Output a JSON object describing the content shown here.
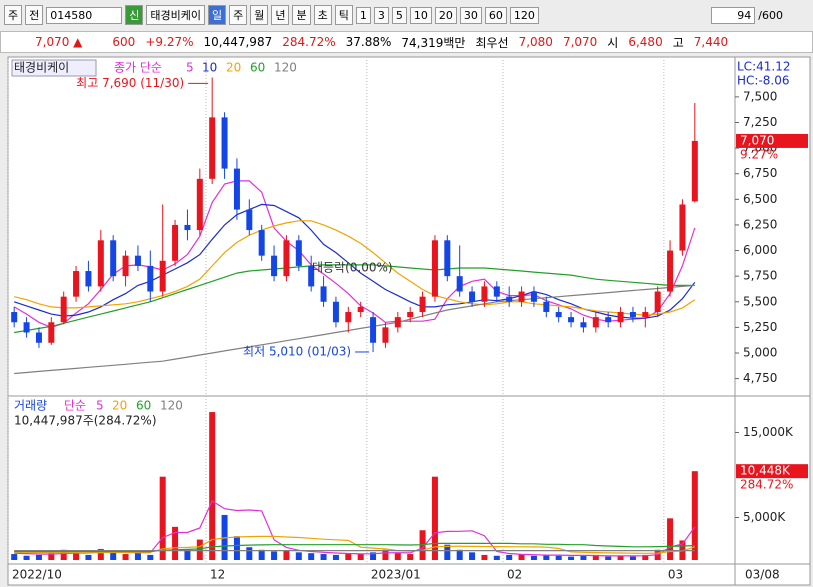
{
  "toolbar": {
    "mode": "주",
    "type": "전",
    "code": "014580",
    "badge": "신",
    "name": "태경비케이",
    "periods": [
      "일",
      "주",
      "월",
      "년",
      "분",
      "초",
      "틱"
    ],
    "intervals": [
      "1",
      "3",
      "5",
      "10",
      "20",
      "30",
      "60",
      "120"
    ],
    "count": "94",
    "max": "/600"
  },
  "quote": {
    "price": "7,070 ▲",
    "change": "600",
    "rate": "+9.27%",
    "volume": "10,447,987",
    "vol_ratio": "284.72%",
    "turnover": "37.88%",
    "amount": "74,319백만",
    "best_label": "최우선",
    "ask": "7,080",
    "bid": "7,070",
    "open_label": "시",
    "open": "6,480",
    "high_label": "고",
    "high": "7,440"
  },
  "chart_data": [
    {
      "type": "candlestick",
      "name": "태경비케이",
      "ma_label": "종가 단순",
      "lc": "LC:41.12",
      "hc": "HC:-8.06",
      "categories": [
        "2022/10",
        null,
        null,
        null,
        null,
        null,
        null,
        null,
        null,
        null,
        null,
        null,
        null,
        null,
        null,
        null,
        "12",
        null,
        null,
        null,
        null,
        null,
        null,
        null,
        null,
        null,
        null,
        null,
        null,
        "2023/01",
        null,
        null,
        null,
        null,
        null,
        null,
        null,
        null,
        null,
        null,
        "02",
        null,
        null,
        null,
        null,
        null,
        null,
        null,
        null,
        null,
        null,
        null,
        null,
        "03",
        null,
        null
      ],
      "last_date": "03/08",
      "open": [
        5400,
        5300,
        5200,
        5100,
        5300,
        5550,
        5800,
        5650,
        6100,
        5750,
        5950,
        5850,
        5600,
        5900,
        6250,
        6200,
        6700,
        7300,
        6800,
        6400,
        6200,
        5950,
        5750,
        6100,
        5850,
        5650,
        5500,
        5300,
        5400,
        5350,
        5100,
        5250,
        5350,
        5400,
        5550,
        6100,
        5750,
        5600,
        5500,
        5650,
        5550,
        5500,
        5600,
        5500,
        5400,
        5350,
        5300,
        5250,
        5350,
        5300,
        5400,
        5350,
        5400,
        5600,
        6000,
        6480
      ],
      "high": [
        5450,
        5350,
        5250,
        5350,
        5600,
        5850,
        5900,
        6200,
        6150,
        6000,
        6050,
        6000,
        6450,
        6300,
        6400,
        6800,
        7690,
        7350,
        6900,
        6500,
        6250,
        6050,
        6150,
        6150,
        5950,
        5750,
        5550,
        5450,
        5500,
        5400,
        5300,
        5400,
        5450,
        5600,
        6150,
        6150,
        6050,
        5650,
        5700,
        5700,
        5650,
        5650,
        5650,
        5550,
        5450,
        5400,
        5350,
        5400,
        5400,
        5450,
        5450,
        5450,
        5650,
        6100,
        6500,
        7440
      ],
      "low": [
        5250,
        5150,
        5050,
        5080,
        5280,
        5500,
        5600,
        5600,
        5700,
        5650,
        5800,
        5500,
        5550,
        5850,
        6100,
        6150,
        6650,
        6700,
        6300,
        6150,
        5900,
        5700,
        5700,
        5800,
        5600,
        5450,
        5250,
        5200,
        5350,
        5010,
        5050,
        5200,
        5300,
        5350,
        5500,
        5700,
        5550,
        5450,
        5450,
        5500,
        5450,
        5450,
        5450,
        5350,
        5300,
        5250,
        5200,
        5200,
        5250,
        5250,
        5300,
        5250,
        5350,
        5550,
        5950,
        6470
      ],
      "close": [
        5300,
        5200,
        5100,
        5300,
        5550,
        5800,
        5650,
        6100,
        5750,
        5950,
        5850,
        5600,
        5900,
        6250,
        6200,
        6700,
        7300,
        6800,
        6400,
        6200,
        5950,
        5750,
        6100,
        5850,
        5650,
        5500,
        5300,
        5400,
        5450,
        5100,
        5250,
        5350,
        5400,
        5550,
        6100,
        5750,
        5600,
        5500,
        5650,
        5550,
        5500,
        5600,
        5500,
        5400,
        5350,
        5300,
        5250,
        5350,
        5300,
        5400,
        5350,
        5400,
        5600,
        6000,
        6450,
        7070
      ],
      "up_color": "#e8141e",
      "down_color": "#1446e6",
      "series": [
        {
          "name": "5",
          "color": "#e030d8",
          "values": [
            5450,
            5380,
            5300,
            5250,
            5290,
            5390,
            5480,
            5620,
            5770,
            5850,
            5860,
            5840,
            5810,
            5870,
            5960,
            6140,
            6470,
            6650,
            6680,
            6680,
            6570,
            6220,
            6090,
            6000,
            5860,
            5770,
            5680,
            5580,
            5460,
            5390,
            5300,
            5310,
            5310,
            5310,
            5330,
            5530,
            5650,
            5700,
            5720,
            5600,
            5560,
            5560,
            5570,
            5510,
            5470,
            5430,
            5370,
            5330,
            5310,
            5320,
            5330,
            5340,
            5410,
            5580,
            5850,
            6220
          ]
        },
        {
          "name": "10",
          "color": "#1c2ccc",
          "values": [
            5500,
            5460,
            5420,
            5380,
            5360,
            5370,
            5400,
            5450,
            5520,
            5580,
            5660,
            5700,
            5760,
            5820,
            5880,
            5960,
            6110,
            6250,
            6350,
            6400,
            6450,
            6440,
            6380,
            6320,
            6200,
            6060,
            5980,
            5880,
            5780,
            5700,
            5620,
            5560,
            5500,
            5450,
            5450,
            5470,
            5480,
            5500,
            5520,
            5510,
            5530,
            5560,
            5600,
            5570,
            5520,
            5480,
            5430,
            5400,
            5370,
            5350,
            5340,
            5340,
            5360,
            5420,
            5530,
            5690
          ]
        },
        {
          "name": "20",
          "color": "#f0a400",
          "values": [
            5550,
            5520,
            5480,
            5450,
            5440,
            5440,
            5450,
            5460,
            5470,
            5480,
            5500,
            5530,
            5560,
            5600,
            5650,
            5720,
            5850,
            5980,
            6080,
            6150,
            6200,
            6240,
            6270,
            6290,
            6290,
            6250,
            6200,
            6140,
            6070,
            5980,
            5880,
            5780,
            5700,
            5620,
            5560,
            5530,
            5500,
            5480,
            5470,
            5480,
            5500,
            5500,
            5480,
            5470,
            5460,
            5450,
            5430,
            5410,
            5400,
            5390,
            5380,
            5370,
            5380,
            5400,
            5440,
            5520
          ]
        },
        {
          "name": "60",
          "color": "#22a028",
          "values": [
            5200,
            5220,
            5240,
            5260,
            5290,
            5320,
            5350,
            5380,
            5410,
            5440,
            5470,
            5500,
            5540,
            5580,
            5620,
            5660,
            5700,
            5740,
            5780,
            5800,
            5810,
            5820,
            5830,
            5840,
            5850,
            5860,
            5860,
            5860,
            5860,
            5860,
            5850,
            5840,
            5830,
            5820,
            5810,
            5820,
            5830,
            5830,
            5830,
            5820,
            5810,
            5800,
            5790,
            5780,
            5770,
            5760,
            5740,
            5720,
            5710,
            5700,
            5690,
            5680,
            5670,
            5660,
            5660,
            5660
          ]
        },
        {
          "name": "120",
          "color": "#808080",
          "values": [
            4800,
            4810,
            4820,
            4830,
            4840,
            4850,
            4860,
            4870,
            4880,
            4890,
            4900,
            4910,
            4920,
            4940,
            4960,
            4980,
            5000,
            5020,
            5040,
            5060,
            5080,
            5100,
            5120,
            5140,
            5160,
            5180,
            5200,
            5220,
            5240,
            5260,
            5280,
            5300,
            5330,
            5360,
            5390,
            5420,
            5440,
            5460,
            5480,
            5500,
            5510,
            5520,
            5530,
            5540,
            5550,
            5560,
            5570,
            5580,
            5590,
            5600,
            5610,
            5620,
            5630,
            5640,
            5650,
            5660
          ]
        }
      ],
      "ylim": [
        4590,
        7860
      ],
      "yticks": [
        {
          "value": 4750,
          "label": "4,750"
        },
        {
          "value": 5000,
          "label": "5,000"
        },
        {
          "value": 5250,
          "label": "5,250"
        },
        {
          "value": 5500,
          "label": "5,500"
        },
        {
          "value": 5750,
          "label": "5,750"
        },
        {
          "value": 6000,
          "label": "6,000"
        },
        {
          "value": 6250,
          "label": "6,250"
        },
        {
          "value": 6500,
          "label": "6,500"
        },
        {
          "value": 6750,
          "label": "6,750"
        },
        {
          "value": 7000,
          "label": "7,000"
        },
        {
          "value": 7250,
          "label": "7,250"
        },
        {
          "value": 7500,
          "label": "7,500"
        }
      ],
      "last": {
        "value": 7070,
        "label": "7,070"
      },
      "last_rate": "9.27%",
      "high_note": "최고 7,690 (11/30)",
      "low_note": "최저 5,010 (01/03)",
      "mid_note": "대등락(0.00%)"
    },
    {
      "type": "bar",
      "title": "거래량",
      "ma_label": "단순",
      "summary": "10,447,987주(284.72%)",
      "values": [
        700,
        500,
        600,
        800,
        1200,
        900,
        600,
        1300,
        900,
        700,
        800,
        600,
        9800,
        3900,
        1200,
        2400,
        17400,
        5300,
        2800,
        1500,
        1200,
        1000,
        1100,
        900,
        800,
        700,
        600,
        800,
        700,
        900,
        1200,
        800,
        700,
        3500,
        9800,
        1800,
        1200,
        900,
        600,
        500,
        600,
        700,
        500,
        600,
        500,
        400,
        500,
        600,
        400,
        500,
        400,
        600,
        1200,
        4900,
        2300,
        10448
      ],
      "series": [
        {
          "name": "5",
          "color": "#e030d8",
          "values": [
            800,
            750,
            700,
            680,
            760,
            800,
            820,
            960,
            980,
            880,
            860,
            860,
            2640,
            3240,
            3240,
            3760,
            6940,
            6040,
            5820,
            5880,
            5780,
            2360,
            1480,
            1140,
            1000,
            900,
            820,
            760,
            720,
            740,
            840,
            860,
            840,
            1420,
            3200,
            3360,
            3380,
            3440,
            2860,
            1000,
            760,
            660,
            620,
            580,
            580,
            540,
            540,
            520,
            480,
            480,
            480,
            500,
            620,
            1520,
            1880,
            3880
          ]
        },
        {
          "name": "20",
          "color": "#f0a400",
          "values": [
            900,
            900,
            880,
            870,
            860,
            860,
            860,
            870,
            880,
            890,
            900,
            910,
            1300,
            1450,
            1480,
            1560,
            2400,
            2600,
            2700,
            2750,
            2780,
            2790,
            2700,
            2650,
            2550,
            2450,
            2380,
            2300,
            1500,
            1400,
            1300,
            1100,
            1050,
            1150,
            1550,
            1600,
            1620,
            1600,
            1590,
            1580,
            1560,
            1550,
            1540,
            1510,
            1350,
            950,
            900,
            870,
            840,
            820,
            800,
            790,
            810,
            1000,
            1070,
            1550
          ]
        },
        {
          "name": "60",
          "color": "#22a028",
          "values": [
            1000,
            1000,
            1000,
            1000,
            1000,
            1000,
            1000,
            1000,
            1000,
            1000,
            1000,
            1000,
            1150,
            1200,
            1250,
            1300,
            1550,
            1650,
            1700,
            1750,
            1780,
            1800,
            1800,
            1800,
            1800,
            1800,
            1800,
            1800,
            1800,
            1800,
            1800,
            1780,
            1760,
            1800,
            1950,
            1950,
            1950,
            1950,
            1950,
            1950,
            1950,
            1900,
            1900,
            1850,
            1850,
            1800,
            1800,
            1700,
            1650,
            1600,
            1550,
            1550,
            1580,
            1600,
            1650,
            1700
          ]
        },
        {
          "name": "120",
          "color": "#808080",
          "values": [
            1100,
            1100,
            1100,
            1100,
            1100,
            1100,
            1100,
            1100,
            1100,
            1100,
            1100,
            1100,
            1100,
            1100,
            1100,
            1100,
            1100,
            1100,
            1100,
            1100,
            1100,
            1100,
            1100,
            1100,
            1100,
            1100,
            1100,
            1100,
            1100,
            1100,
            1100,
            1100,
            1100,
            1100,
            1100,
            1100,
            1100,
            1100,
            1100,
            1100,
            1100,
            1100,
            1100,
            1100,
            1100,
            1100,
            1100,
            1100,
            1100,
            1100,
            1100,
            1100,
            1100,
            1100,
            1100,
            1100
          ]
        }
      ],
      "ylim": [
        0,
        18820
      ],
      "yticks": [
        {
          "value": 5000,
          "label": "5,000K"
        },
        {
          "value": 15000,
          "label": "15,000K"
        }
      ],
      "last": {
        "value": 10448,
        "label": "10,448K"
      },
      "last_rate": "284.72%"
    }
  ]
}
